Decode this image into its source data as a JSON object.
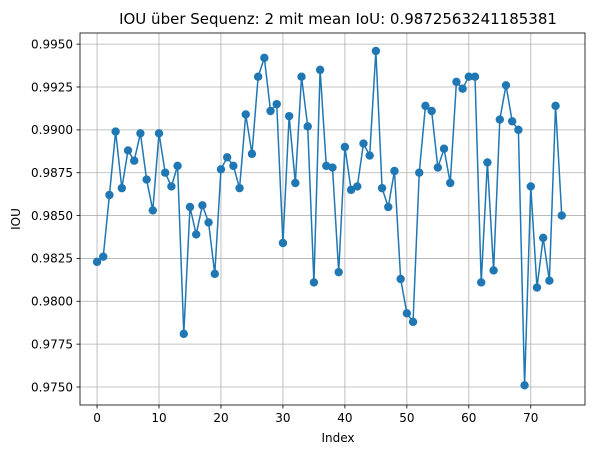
{
  "chart_data": {
    "type": "line",
    "title": "IOU über Sequenz: 2 mit mean IoU: 0.9872563241185381",
    "xlabel": "Index",
    "ylabel": "IOU",
    "xlim": [
      -2.75,
      78.75
    ],
    "ylim": [
      0.97395,
      0.99565
    ],
    "grid": true,
    "x_ticks": [
      0,
      10,
      20,
      30,
      40,
      50,
      60,
      70
    ],
    "x_tick_labels": [
      "0",
      "10",
      "20",
      "30",
      "40",
      "50",
      "60",
      "70"
    ],
    "y_ticks": [
      0.975,
      0.9775,
      0.98,
      0.9825,
      0.985,
      0.9875,
      0.99,
      0.9925,
      0.995
    ],
    "y_tick_labels": [
      "0.9750",
      "0.9775",
      "0.9800",
      "0.9825",
      "0.9850",
      "0.9875",
      "0.9900",
      "0.9925",
      "0.9950"
    ],
    "series": [
      {
        "color": "#1f77b4",
        "marker": "circle",
        "x": [
          0,
          1,
          2,
          3,
          4,
          5,
          6,
          7,
          8,
          9,
          10,
          11,
          12,
          13,
          14,
          15,
          16,
          17,
          18,
          19,
          20,
          21,
          22,
          23,
          24,
          25,
          26,
          27,
          28,
          29,
          30,
          31,
          32,
          33,
          34,
          35,
          36,
          37,
          38,
          39,
          40,
          41,
          42,
          43,
          44,
          45,
          46,
          47,
          48,
          49,
          50,
          51,
          52,
          53,
          54,
          55,
          56,
          57,
          58,
          59,
          60,
          61,
          62,
          63,
          64,
          65,
          66,
          67,
          68,
          69,
          70,
          71,
          72,
          73,
          74,
          75
        ],
        "values": [
          0.9823,
          0.9826,
          0.9862,
          0.9899,
          0.9866,
          0.9888,
          0.9882,
          0.9898,
          0.9871,
          0.9853,
          0.9898,
          0.9875,
          0.9867,
          0.9879,
          0.9781,
          0.9855,
          0.9839,
          0.9856,
          0.9846,
          0.9816,
          0.9877,
          0.9884,
          0.9879,
          0.9866,
          0.9909,
          0.9886,
          0.9931,
          0.9942,
          0.9911,
          0.9915,
          0.9834,
          0.9908,
          0.9869,
          0.9931,
          0.9902,
          0.9811,
          0.9935,
          0.9879,
          0.9878,
          0.9817,
          0.989,
          0.9865,
          0.9867,
          0.9892,
          0.9885,
          0.9946,
          0.9866,
          0.9855,
          0.9876,
          0.9813,
          0.9793,
          0.9788,
          0.9875,
          0.9914,
          0.9911,
          0.9878,
          0.9889,
          0.9869,
          0.9928,
          0.9924,
          0.9931,
          0.9931,
          0.9811,
          0.9881,
          0.9818,
          0.9906,
          0.9926,
          0.9905,
          0.99,
          0.9751,
          0.9867,
          0.9808,
          0.9837,
          0.9812,
          0.9914,
          0.985
        ]
      }
    ]
  }
}
